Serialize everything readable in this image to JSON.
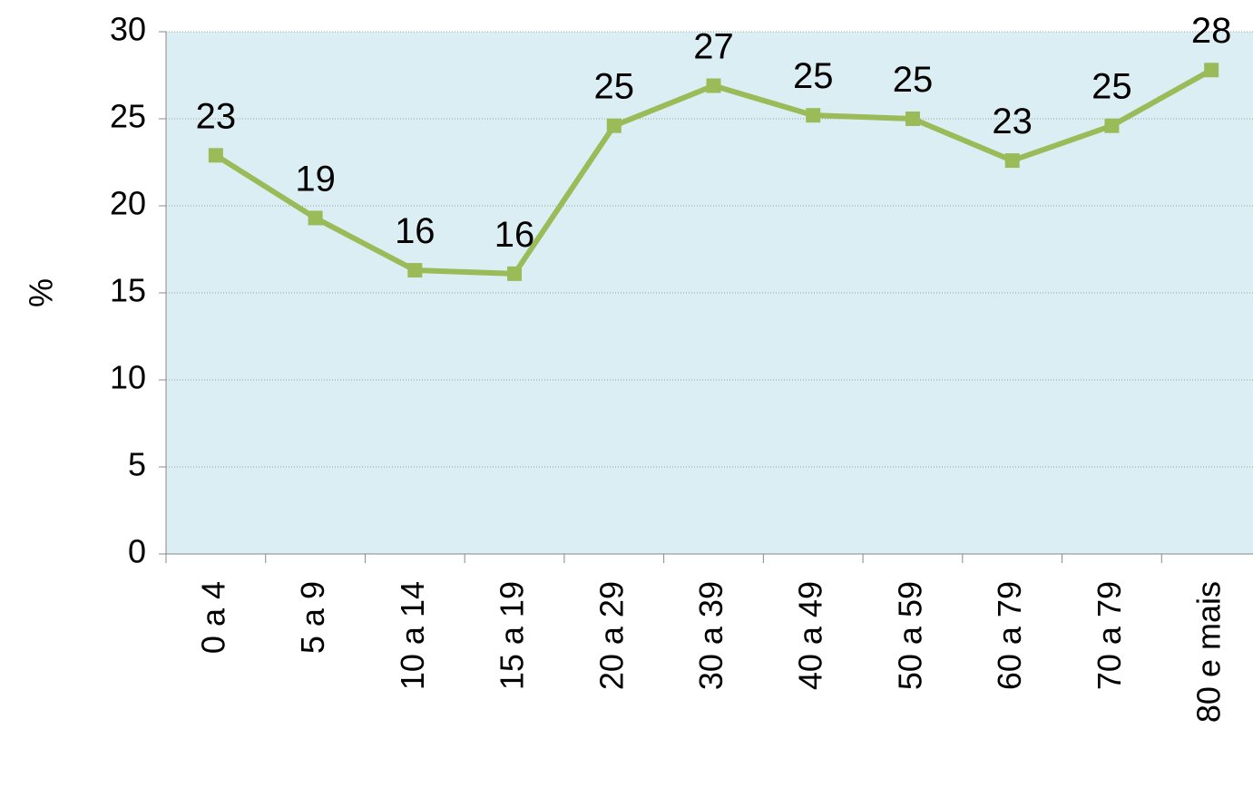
{
  "chart_data": {
    "type": "line",
    "y_label": "%",
    "categories": [
      "0 a 4",
      "5 a 9",
      "10 a 14",
      "15 a 19",
      "20 a 29",
      "30 a 39",
      "40 a 49",
      "50 a 59",
      "60 a 79",
      "70 a 79",
      "80 e mais"
    ],
    "series": [
      {
        "color": "#9bbb59",
        "values": [
          22.9,
          19.3,
          16.3,
          16.1,
          24.6,
          26.9,
          25.2,
          25.0,
          22.6,
          24.6,
          27.8
        ],
        "value_labels": [
          "23",
          "19",
          "16",
          "16",
          "25",
          "27",
          "25",
          "25",
          "23",
          "25",
          "28"
        ]
      }
    ],
    "ylim": [
      0,
      30
    ],
    "yticks": [
      0,
      5,
      10,
      15,
      20,
      25,
      30
    ],
    "grid": true,
    "plot_background": "#daeef3"
  }
}
